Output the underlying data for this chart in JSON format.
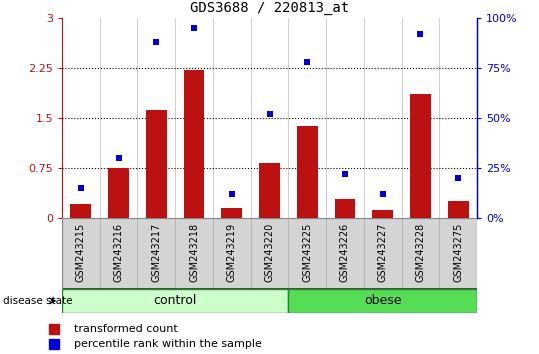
{
  "title": "GDS3688 / 220813_at",
  "samples": [
    "GSM243215",
    "GSM243216",
    "GSM243217",
    "GSM243218",
    "GSM243219",
    "GSM243220",
    "GSM243225",
    "GSM243226",
    "GSM243227",
    "GSM243228",
    "GSM243275"
  ],
  "red_bars": [
    0.2,
    0.75,
    1.62,
    2.22,
    0.15,
    0.82,
    1.38,
    0.28,
    0.12,
    1.85,
    0.25
  ],
  "blue_dots": [
    0.15,
    0.3,
    0.88,
    0.95,
    0.12,
    0.52,
    0.78,
    0.22,
    0.12,
    0.92,
    0.2
  ],
  "ylim_left": [
    0,
    3
  ],
  "ylim_right": [
    0,
    1
  ],
  "yticks_left": [
    0,
    0.75,
    1.5,
    2.25,
    3
  ],
  "yticks_right": [
    0,
    0.25,
    0.5,
    0.75,
    1.0
  ],
  "ytick_labels_left": [
    "0",
    "0.75",
    "1.5",
    "2.25",
    "3"
  ],
  "ytick_labels_right": [
    "0%",
    "25%",
    "50%",
    "75%",
    "100%"
  ],
  "bar_color": "#bb1111",
  "dot_color": "#0000dd",
  "control_samples": 6,
  "obese_samples": 5,
  "control_label": "control",
  "obese_label": "obese",
  "disease_state_label": "disease state",
  "legend_red": "transformed count",
  "legend_blue": "percentile rank within the sample",
  "control_color": "#ccffcc",
  "obese_color": "#55dd55",
  "label_bg_color": "#d4d4d4",
  "label_border_color": "#999999",
  "bar_width": 0.55,
  "plot_bg": "#ffffff",
  "figsize": [
    5.39,
    3.54
  ],
  "dpi": 100
}
